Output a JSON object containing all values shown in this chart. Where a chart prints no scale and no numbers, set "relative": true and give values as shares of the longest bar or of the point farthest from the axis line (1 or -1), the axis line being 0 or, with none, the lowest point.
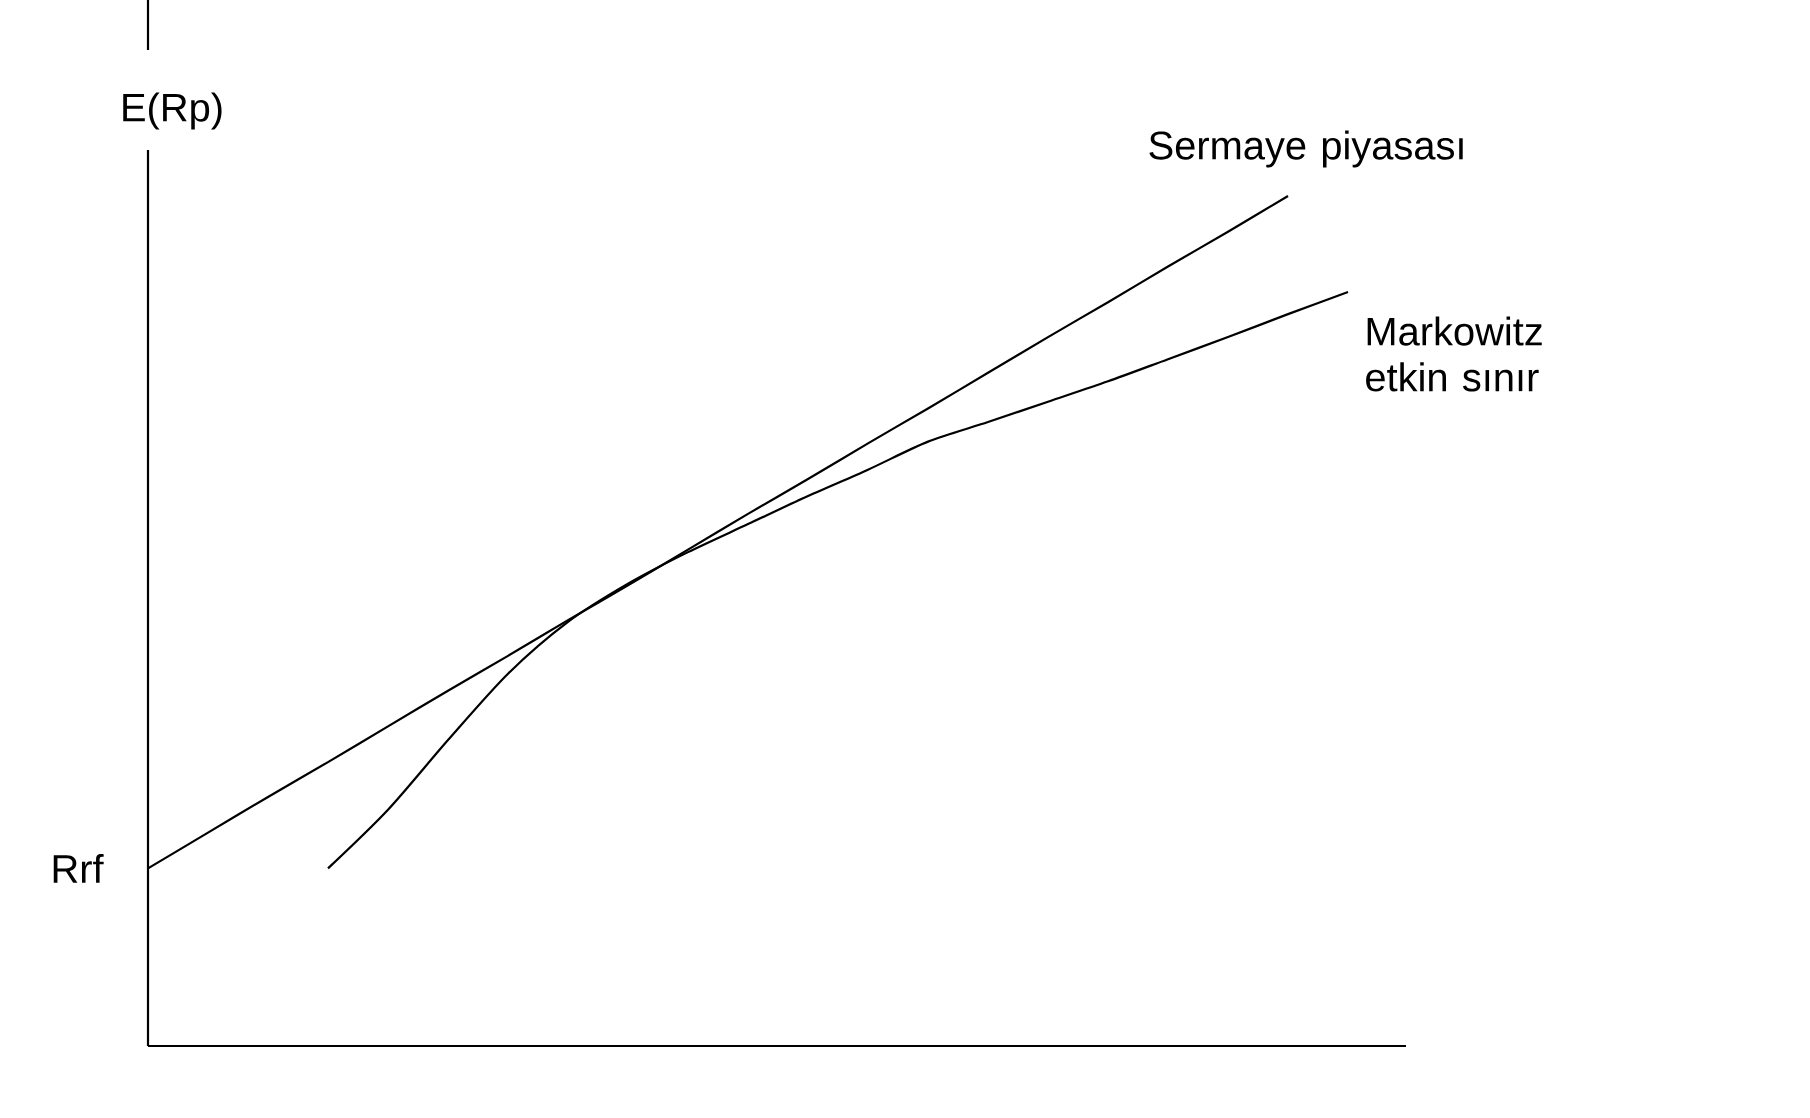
{
  "chart_data": {
    "type": "line",
    "relative": true,
    "ylabel": "E(Rp)",
    "categories": [
      null,
      null,
      null,
      null,
      null,
      null,
      null,
      null,
      null,
      null,
      null,
      null,
      null,
      null,
      null,
      null,
      null,
      null,
      null,
      null,
      null
    ],
    "series": [
      {
        "name": "Sermaye piyasası",
        "color": "#000000",
        "values": [
          0.209,
          0.251,
          0.293,
          0.334,
          0.376,
          0.418,
          0.459,
          0.501,
          0.542,
          0.584,
          0.626,
          0.667,
          0.709,
          0.75,
          0.792,
          0.834,
          0.875,
          0.917,
          0.958,
          1,
          null
        ]
      },
      {
        "name": "Markowitz etkin sınır",
        "color": "#000000",
        "values": [
          null,
          null,
          null,
          0.209,
          0.278,
          0.36,
          0.438,
          0.499,
          0.544,
          0.581,
          0.614,
          0.647,
          0.678,
          0.711,
          0.734,
          0.758,
          0.782,
          0.808,
          0.834,
          0.861,
          0.887
        ]
      }
    ],
    "annotations": [
      "Rrf"
    ]
  }
}
